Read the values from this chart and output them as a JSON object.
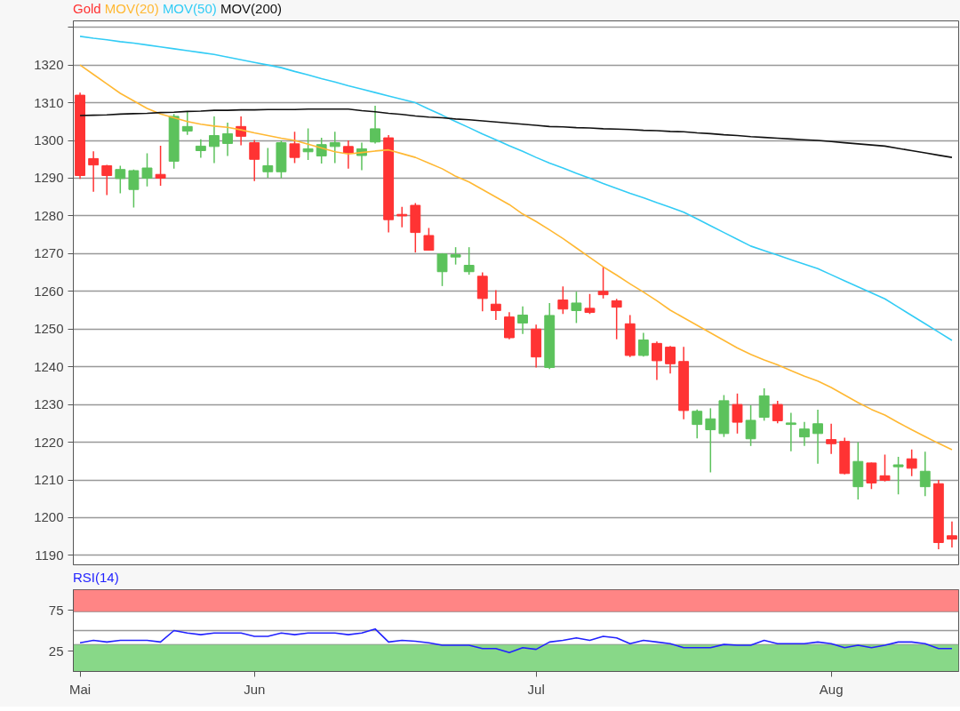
{
  "chart_data": [
    {
      "type": "candlestick",
      "legend": "top left",
      "grid": "y",
      "tick_labels": "y",
      "categories": [
        null,
        null,
        null,
        null,
        null,
        null,
        null,
        null,
        null,
        null,
        null,
        null,
        null,
        null,
        null,
        null,
        null,
        null,
        null,
        null,
        null,
        null,
        null,
        null,
        null,
        null,
        null,
        null,
        null,
        null,
        null,
        null,
        null,
        null,
        null,
        null,
        null,
        null,
        null,
        null,
        null,
        null,
        null,
        null,
        null,
        null,
        null,
        null,
        null,
        null,
        null,
        null,
        null,
        null,
        null,
        null,
        null,
        null,
        null,
        null,
        null,
        null,
        null,
        null,
        null,
        null
      ],
      "ylim": [
        1187.5,
        1331.7
      ],
      "yticks": [
        1190,
        1200,
        1210,
        1220,
        1230,
        1240,
        1250,
        1260,
        1270,
        1280,
        1290,
        1300,
        1310,
        1320,
        {
          "value": 1330,
          "label": null
        }
      ],
      "series": [
        {
          "name": "Gold",
          "type": "candlestick",
          "color": "#ff3333",
          "ohlc": [
            [
              1312,
              1312.7,
              1289.8,
              1290.7
            ],
            [
              1295.2,
              1297.1,
              1286.4,
              1293.5
            ],
            [
              1293.3,
              1293.5,
              1285.5,
              1290.7
            ],
            [
              1289.9,
              1293.3,
              1286,
              1292.3
            ],
            [
              1287,
              1292.3,
              1282.2,
              1292
            ],
            [
              1290,
              1296.6,
              1287.8,
              1292.7
            ],
            [
              1291,
              1298.6,
              1288,
              1290
            ],
            [
              1294.5,
              1307,
              1292.5,
              1306.4
            ],
            [
              1302.5,
              1307.7,
              1301.5,
              1303.7
            ],
            [
              1297.3,
              1300.3,
              1295.4,
              1298.5
            ],
            [
              1298.4,
              1306.4,
              1294,
              1301.3
            ],
            [
              1299.2,
              1304.7,
              1295.9,
              1301.8
            ],
            [
              1303.7,
              1306.4,
              1298.7,
              1301.1
            ],
            [
              1299.4,
              1300.1,
              1289.2,
              1295
            ],
            [
              1291.7,
              1298,
              1290.1,
              1293.3
            ],
            [
              1291.7,
              1300,
              1290,
              1299.4
            ],
            [
              1299.1,
              1302.3,
              1294,
              1295.5
            ],
            [
              1297,
              1303.2,
              1294.8,
              1297.8
            ],
            [
              1295.9,
              1300.7,
              1293.9,
              1298.9
            ],
            [
              1298.4,
              1302.3,
              1294,
              1299.4
            ],
            [
              1298.4,
              1300,
              1292.5,
              1296.7
            ],
            [
              1296,
              1299.4,
              1292.1,
              1297.8
            ],
            [
              1299.6,
              1309.2,
              1299.2,
              1303.1
            ],
            [
              1300.7,
              1301.4,
              1275.6,
              1279
            ],
            [
              1280.4,
              1282.4,
              1277,
              1280
            ],
            [
              1282.8,
              1283.4,
              1270.3,
              1275.6
            ],
            [
              1274.8,
              1276.8,
              1270.9,
              1270.9
            ],
            [
              1265.2,
              1270.1,
              1261.4,
              1269.9
            ],
            [
              1269.1,
              1271.7,
              1267.1,
              1269.7
            ],
            [
              1265.2,
              1271.7,
              1264.4,
              1266.9
            ],
            [
              1264,
              1265,
              1254.7,
              1258.1
            ],
            [
              1256.6,
              1260.3,
              1252.4,
              1254.9
            ],
            [
              1253.2,
              1254.5,
              1247.3,
              1247.7
            ],
            [
              1251.6,
              1256,
              1248.7,
              1253.7
            ],
            [
              1250,
              1251.2,
              1239.8,
              1242.6
            ],
            [
              1239.8,
              1256.9,
              1239.4,
              1253.6
            ],
            [
              1257.7,
              1261.3,
              1254,
              1255.3
            ],
            [
              1254.9,
              1259.9,
              1251.6,
              1256.9
            ],
            [
              1255.5,
              1259.3,
              1254,
              1254.4
            ],
            [
              1260,
              1266.5,
              1258.1,
              1259.1
            ],
            [
              1257.5,
              1258,
              1247.3,
              1255.8
            ],
            [
              1251.4,
              1253.7,
              1242.6,
              1243
            ],
            [
              1243,
              1249,
              1242.7,
              1247.1
            ],
            [
              1246.2,
              1246.7,
              1236.5,
              1241.6
            ],
            [
              1245.2,
              1245.5,
              1238.2,
              1240.8
            ],
            [
              1241.4,
              1245.3,
              1226.1,
              1228.4
            ],
            [
              1224.7,
              1228.7,
              1221,
              1228.2
            ],
            [
              1223.3,
              1229,
              1212,
              1226.2
            ],
            [
              1222.3,
              1232.5,
              1221.4,
              1231
            ],
            [
              1230,
              1232.9,
              1222.3,
              1225.3
            ],
            [
              1220.9,
              1229.8,
              1219,
              1225.8
            ],
            [
              1226.6,
              1234.3,
              1225.7,
              1232.3
            ],
            [
              1230,
              1231,
              1225,
              1225.7
            ],
            [
              1224.7,
              1227.8,
              1217.6,
              1225.1
            ],
            [
              1221.4,
              1225.4,
              1219,
              1223.5
            ],
            [
              1222.3,
              1228.6,
              1214.3,
              1224.9
            ],
            [
              1220.7,
              1224.9,
              1216.9,
              1219.6
            ],
            [
              1220.2,
              1221.2,
              1211.5,
              1211.7
            ],
            [
              1208.2,
              1220,
              1204.8,
              1214.9
            ],
            [
              1214.5,
              1214.6,
              1207.6,
              1209.2
            ],
            [
              1211.1,
              1216.7,
              1209.6,
              1209.9
            ],
            [
              1213.5,
              1216.1,
              1206.2,
              1214
            ],
            [
              1215.6,
              1218.1,
              1211,
              1213.1
            ],
            [
              1208.2,
              1217.5,
              1205.7,
              1212.3
            ],
            [
              1209,
              1210,
              1191.6,
              1193.4
            ],
            [
              1195.2,
              1199,
              1192.1,
              1194.3
            ]
          ],
          "colors": [
            "#ff3333",
            "#ff3333",
            "#ff3333",
            "#5cc25c",
            "#5cc25c",
            "#5cc25c",
            "#ff3333",
            "#5cc25c",
            "#5cc25c",
            "#5cc25c",
            "#5cc25c",
            "#5cc25c",
            "#ff3333",
            "#ff3333",
            "#5cc25c",
            "#5cc25c",
            "#ff3333",
            "#5cc25c",
            "#5cc25c",
            "#5cc25c",
            "#ff3333",
            "#5cc25c",
            "#5cc25c",
            "#ff3333",
            "#ff3333",
            "#ff3333",
            "#ff3333",
            "#5cc25c",
            "#5cc25c",
            "#5cc25c",
            "#ff3333",
            "#ff3333",
            "#ff3333",
            "#5cc25c",
            "#ff3333",
            "#5cc25c",
            "#ff3333",
            "#5cc25c",
            "#ff3333",
            "#ff3333",
            "#ff3333",
            "#ff3333",
            "#5cc25c",
            "#ff3333",
            "#ff3333",
            "#ff3333",
            "#5cc25c",
            "#5cc25c",
            "#5cc25c",
            "#ff3333",
            "#5cc25c",
            "#5cc25c",
            "#ff3333",
            "#5cc25c",
            "#5cc25c",
            "#5cc25c",
            "#ff3333",
            "#ff3333",
            "#5cc25c",
            "#ff3333",
            "#ff3333",
            "#5cc25c",
            "#ff3333",
            "#5cc25c",
            "#ff3333",
            "#ff3333"
          ]
        },
        {
          "name": "MOV(20)",
          "type": "line",
          "color": "#ffb833",
          "values": [
            1320,
            1317.5,
            1315,
            1312.5,
            1310.5,
            1308.5,
            1307,
            1306,
            1305,
            1304.3,
            1303.8,
            1303.5,
            1302.8,
            1302,
            1301.3,
            1300.6,
            1300,
            1299,
            1298,
            1297,
            1296.4,
            1296.8,
            1297.2,
            1297.5,
            1296.5,
            1295.5,
            1294,
            1292.5,
            1290.5,
            1289,
            1287,
            1285,
            1283,
            1280.5,
            1278.5,
            1276.3,
            1274,
            1271.5,
            1269,
            1266.5,
            1264.3,
            1262,
            1259.8,
            1257.5,
            1255,
            1253,
            1251,
            1249,
            1247,
            1245,
            1243.3,
            1241.8,
            1240.5,
            1239,
            1237.5,
            1236.2,
            1234.5,
            1232.5,
            1230.5,
            1228.7,
            1227.2,
            1225.2,
            1223.3,
            1221.5,
            1219.7,
            1218
          ]
        },
        {
          "name": "MOV(50)",
          "type": "line",
          "color": "#33ccf5",
          "values": [
            1327.6,
            1327.1,
            1326.7,
            1326.2,
            1325.8,
            1325.3,
            1324.8,
            1324.3,
            1323.8,
            1323.3,
            1322.8,
            1322.1,
            1321.4,
            1320.7,
            1320,
            1319.3,
            1318.3,
            1317.4,
            1316.4,
            1315.5,
            1314.5,
            1313.6,
            1312.7,
            1311.8,
            1310.9,
            1310,
            1308.3,
            1306.7,
            1305,
            1303.4,
            1301.7,
            1300.2,
            1298.6,
            1297.1,
            1295.5,
            1294,
            1292.7,
            1291.3,
            1290,
            1288.6,
            1287.3,
            1286,
            1284.8,
            1283.5,
            1282.3,
            1281,
            1279.2,
            1277.4,
            1275.6,
            1273.8,
            1272,
            1270.8,
            1269.6,
            1268.4,
            1267.2,
            1266,
            1264.4,
            1262.8,
            1261.2,
            1259.6,
            1258,
            1255.8,
            1253.6,
            1251.4,
            1249.2,
            1247
          ]
        },
        {
          "name": "MOV(200)",
          "type": "line",
          "color": "#111111",
          "values": [
            1306.6,
            1306.7,
            1306.8,
            1307,
            1307.1,
            1307.2,
            1307.4,
            1307.5,
            1307.7,
            1307.8,
            1308,
            1308,
            1308.1,
            1308.1,
            1308.2,
            1308.2,
            1308.2,
            1308.3,
            1308.3,
            1308.3,
            1308.3,
            1307.9,
            1307.6,
            1307.2,
            1306.9,
            1306.5,
            1306.2,
            1306,
            1305.7,
            1305.5,
            1305.2,
            1304.9,
            1304.6,
            1304.3,
            1304,
            1303.7,
            1303.6,
            1303.4,
            1303.3,
            1303.1,
            1303,
            1302.9,
            1302.7,
            1302.6,
            1302.4,
            1302.3,
            1302,
            1301.8,
            1301.5,
            1301.3,
            1301,
            1300.8,
            1300.6,
            1300.4,
            1300.2,
            1300,
            1299.7,
            1299.4,
            1299.1,
            1298.8,
            1298.5,
            1297.9,
            1297.3,
            1296.7,
            1296.1,
            1295.5
          ]
        }
      ]
    },
    {
      "type": "line",
      "legend": "top left",
      "grid": false,
      "categories": [
        "Mai",
        null,
        null,
        null,
        null,
        null,
        null,
        null,
        null,
        null,
        null,
        null,
        null,
        "Jun",
        null,
        null,
        null,
        null,
        null,
        null,
        null,
        null,
        null,
        null,
        null,
        null,
        null,
        null,
        null,
        null,
        null,
        null,
        null,
        null,
        "Jul",
        null,
        null,
        null,
        null,
        null,
        null,
        null,
        null,
        null,
        null,
        null,
        null,
        null,
        null,
        null,
        null,
        null,
        null,
        null,
        null,
        null,
        "Aug",
        null,
        null,
        null,
        null,
        null,
        null,
        null,
        null,
        null
      ],
      "ylim": [
        0,
        100
      ],
      "yticks": [
        25,
        75
      ],
      "bands": [
        {
          "axis": "y",
          "from": 0,
          "to": 33,
          "color": "#88d888"
        },
        {
          "axis": "y",
          "from": 73,
          "to": 100,
          "color": "#ff8585"
        }
      ],
      "ref_lines": [
        {
          "axis": "y",
          "value": 50,
          "color": "#999999"
        }
      ],
      "series": [
        {
          "name": "RSI(14)",
          "color": "#2222ff",
          "values": [
            35,
            38,
            36,
            38,
            38,
            38,
            36,
            50,
            47,
            45,
            47,
            47,
            47,
            43,
            43,
            47,
            45,
            47,
            47,
            47,
            45,
            47,
            52,
            36,
            38,
            37,
            35,
            32,
            32,
            32,
            28,
            28,
            23,
            29,
            27,
            36,
            38,
            41,
            38,
            43,
            41,
            34,
            38,
            36,
            34,
            29,
            29,
            29,
            33,
            32,
            32,
            38,
            34,
            34,
            34,
            36,
            34,
            29,
            32,
            29,
            32,
            36,
            36,
            34,
            28,
            28
          ]
        }
      ]
    }
  ]
}
